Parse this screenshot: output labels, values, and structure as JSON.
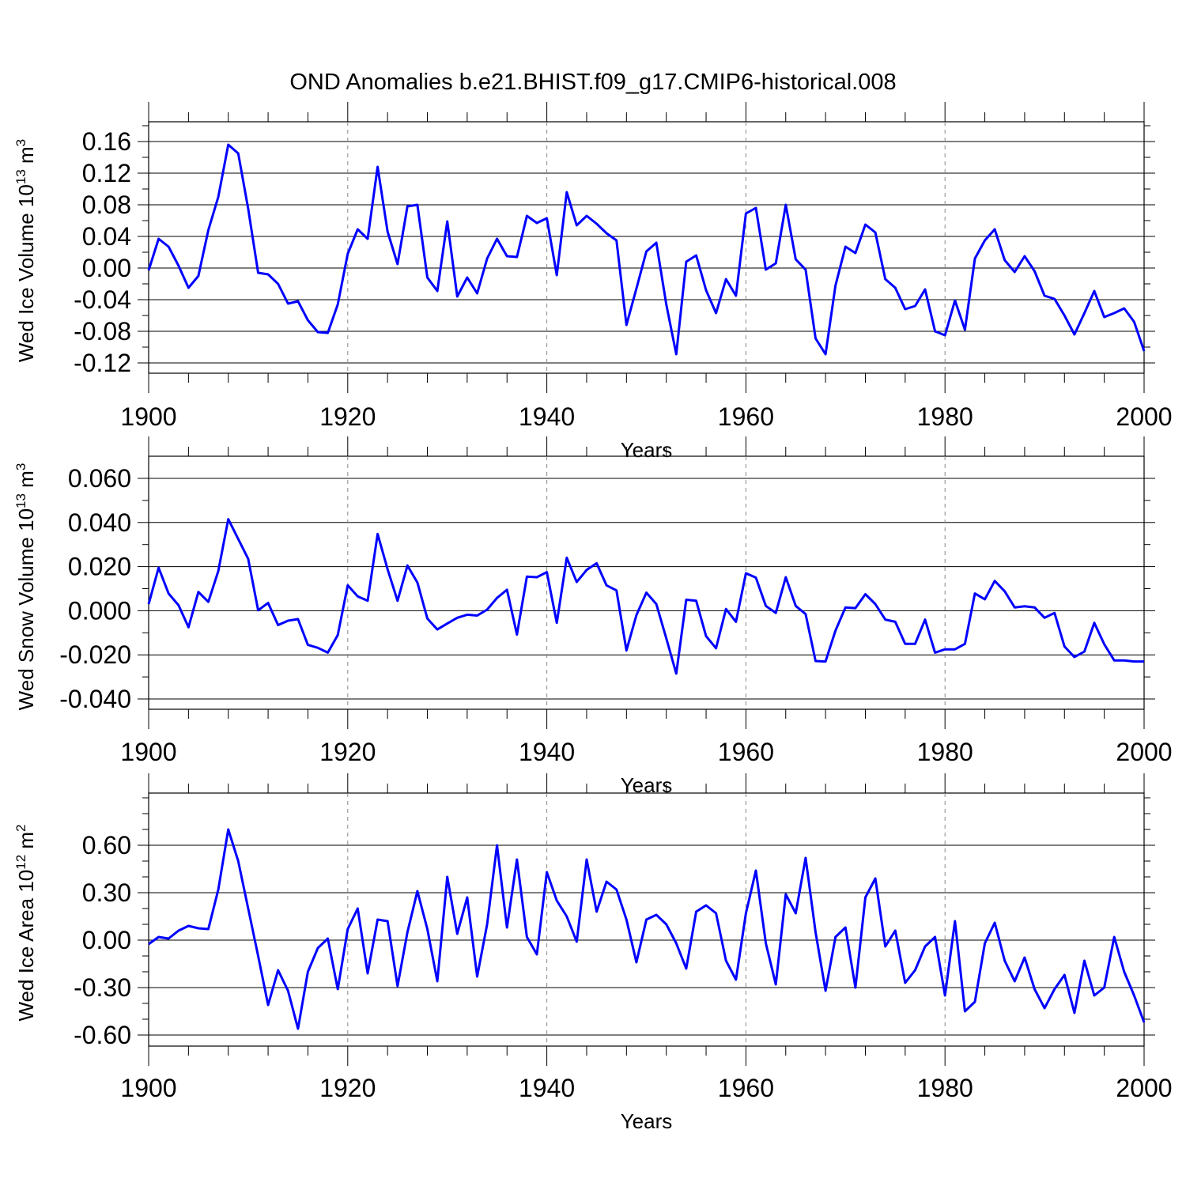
{
  "title": "OND Anomalies b.e21.BHIST.f09_g17.CMIP6-historical.008",
  "line_color": "#0000ff",
  "chart_data": [
    {
      "type": "line",
      "ylabel": "Wed Ice Volume 10",
      "ylabel_exp": "13",
      "ylabel_unit": " m",
      "ylabel_unit_exp": "3",
      "xlabel": "Years",
      "xlim": [
        1900,
        2000
      ],
      "ylim": [
        -0.12,
        0.16
      ],
      "x_ticks": [
        "1900",
        "1920",
        "1940",
        "1960",
        "1980",
        "2000"
      ],
      "y_ticks": [
        "0.16",
        "0.12",
        "0.08",
        "0.04",
        "0.00",
        "-0.04",
        "-0.08",
        "-0.12"
      ],
      "y_tick_values": [
        0.16,
        0.12,
        0.08,
        0.04,
        0.0,
        -0.04,
        -0.08,
        -0.12
      ],
      "x_start": 1900,
      "values": [
        -0.003,
        0.037,
        0.027,
        0.003,
        -0.025,
        -0.01,
        0.048,
        0.09,
        0.156,
        0.145,
        0.075,
        -0.006,
        -0.008,
        -0.02,
        -0.045,
        -0.042,
        -0.066,
        -0.081,
        -0.082,
        -0.046,
        0.018,
        0.049,
        0.037,
        0.128,
        0.046,
        0.005,
        0.078,
        0.08,
        -0.012,
        -0.029,
        0.059,
        -0.036,
        -0.012,
        -0.032,
        0.012,
        0.037,
        0.015,
        0.014,
        0.066,
        0.057,
        0.063,
        -0.009,
        0.096,
        0.054,
        0.066,
        0.056,
        0.044,
        0.035,
        -0.072,
        -0.026,
        0.021,
        0.032,
        -0.046,
        -0.109,
        0.008,
        0.016,
        -0.028,
        -0.057,
        -0.014,
        -0.035,
        0.069,
        0.076,
        -0.002,
        0.006,
        0.08,
        0.011,
        -0.002,
        -0.089,
        -0.109,
        -0.022,
        0.027,
        0.019,
        0.055,
        0.045,
        -0.014,
        -0.025,
        -0.052,
        -0.048,
        -0.027,
        -0.08,
        -0.085,
        -0.041,
        -0.078,
        0.012,
        0.035,
        0.049,
        0.01,
        -0.005,
        0.015,
        -0.004,
        -0.035,
        -0.039,
        -0.06,
        -0.084,
        -0.057,
        -0.029,
        -0.062,
        -0.057,
        -0.051,
        -0.068,
        -0.105
      ]
    },
    {
      "type": "line",
      "ylabel": "Wed Snow Volume 10",
      "ylabel_exp": "13",
      "ylabel_unit": " m",
      "ylabel_unit_exp": "3",
      "xlabel": "Years",
      "xlim": [
        1900,
        2000
      ],
      "ylim": [
        -0.04,
        0.06
      ],
      "x_ticks": [
        "1900",
        "1920",
        "1940",
        "1960",
        "1980",
        "2000"
      ],
      "y_ticks": [
        "0.060",
        "0.040",
        "0.020",
        "0.000",
        "-0.020",
        "-0.040"
      ],
      "y_tick_values": [
        0.06,
        0.04,
        0.02,
        0.0,
        -0.02,
        -0.04
      ],
      "x_start": 1900,
      "values": [
        0.003,
        0.0195,
        0.0078,
        0.0025,
        -0.0075,
        0.0085,
        0.004,
        0.018,
        0.0415,
        0.0325,
        0.0235,
        0.0002,
        0.0035,
        -0.0065,
        -0.0045,
        -0.0038,
        -0.0155,
        -0.0168,
        -0.019,
        -0.011,
        0.0115,
        0.0065,
        0.0045,
        0.0348,
        0.0188,
        0.0045,
        0.0205,
        0.0128,
        -0.0035,
        -0.0085,
        -0.0058,
        -0.0032,
        -0.0018,
        -0.0022,
        0.0005,
        0.0058,
        0.0095,
        -0.0108,
        0.0155,
        0.0152,
        0.0175,
        -0.0055,
        0.024,
        0.013,
        0.0185,
        0.0215,
        0.0115,
        0.0092,
        -0.018,
        -0.002,
        0.0082,
        0.003,
        -0.0125,
        -0.0285,
        0.005,
        0.0045,
        -0.0115,
        -0.017,
        0.0008,
        -0.005,
        0.017,
        0.015,
        0.0022,
        -0.001,
        0.0152,
        0.0022,
        -0.0015,
        -0.0228,
        -0.023,
        -0.009,
        0.0015,
        0.0012,
        0.0075,
        0.003,
        -0.004,
        -0.005,
        -0.015,
        -0.015,
        -0.004,
        -0.019,
        -0.0175,
        -0.0175,
        -0.015,
        0.0078,
        0.0052,
        0.0135,
        0.0088,
        0.0015,
        0.002,
        0.0015,
        -0.0032,
        -0.001,
        -0.0162,
        -0.021,
        -0.0185,
        -0.0055,
        -0.0152,
        -0.0225,
        -0.0225,
        -0.023,
        -0.023
      ]
    },
    {
      "type": "line",
      "ylabel": "Wed Ice Area 10",
      "ylabel_exp": "12",
      "ylabel_unit": " m",
      "ylabel_unit_exp": "2",
      "xlabel": "Years",
      "xlim": [
        1900,
        2000
      ],
      "ylim": [
        -0.6,
        0.8
      ],
      "x_ticks": [
        "1900",
        "1920",
        "1940",
        "1960",
        "1980",
        "2000"
      ],
      "y_ticks": [
        "0.60",
        "0.30",
        "0.00",
        "-0.30",
        "-0.60"
      ],
      "y_tick_values": [
        0.6,
        0.3,
        0.0,
        -0.3,
        -0.6
      ],
      "x_start": 1900,
      "values": [
        -0.025,
        0.02,
        0.01,
        0.06,
        0.09,
        0.075,
        0.07,
        0.32,
        0.7,
        0.5,
        0.2,
        -0.1,
        -0.41,
        -0.19,
        -0.32,
        -0.56,
        -0.2,
        -0.05,
        0.01,
        -0.31,
        0.07,
        0.2,
        -0.21,
        0.13,
        0.12,
        -0.29,
        0.05,
        0.31,
        0.07,
        -0.26,
        0.4,
        0.04,
        0.27,
        -0.23,
        0.1,
        0.6,
        0.08,
        0.51,
        0.02,
        -0.09,
        0.43,
        0.25,
        0.15,
        -0.01,
        0.51,
        0.18,
        0.37,
        0.32,
        0.13,
        -0.14,
        0.13,
        0.16,
        0.1,
        -0.02,
        -0.18,
        0.18,
        0.22,
        0.17,
        -0.13,
        -0.25,
        0.17,
        0.44,
        -0.02,
        -0.28,
        0.29,
        0.17,
        0.52,
        0.05,
        -0.32,
        0.02,
        0.08,
        -0.3,
        0.27,
        0.39,
        -0.04,
        0.06,
        -0.27,
        -0.19,
        -0.04,
        0.02,
        -0.35,
        0.12,
        -0.45,
        -0.39,
        -0.02,
        0.11,
        -0.13,
        -0.26,
        -0.11,
        -0.31,
        -0.43,
        -0.31,
        -0.22,
        -0.46,
        -0.13,
        -0.35,
        -0.3,
        0.02,
        -0.2,
        -0.35,
        -0.52
      ]
    }
  ]
}
